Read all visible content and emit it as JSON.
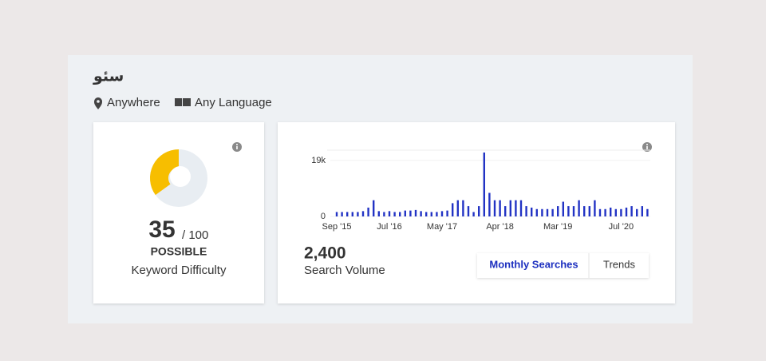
{
  "header": {
    "title": "سئو",
    "location": "Anywhere",
    "language": "Any Language"
  },
  "difficulty": {
    "score": 35,
    "max": {
      "value": 100,
      "label": "/ 100"
    },
    "rating": "POSSIBLE",
    "caption": "Keyword Difficulty",
    "color": "#f7be00",
    "track_color": "#e8edf2"
  },
  "chart_data": {
    "type": "bar",
    "categories": [
      "Sep '15",
      null,
      null,
      null,
      null,
      null,
      null,
      null,
      null,
      null,
      "Jul '16",
      null,
      null,
      null,
      null,
      null,
      null,
      null,
      null,
      null,
      "May '17",
      null,
      null,
      null,
      null,
      null,
      null,
      null,
      null,
      null,
      null,
      "Apr '18",
      null,
      null,
      null,
      null,
      null,
      null,
      null,
      null,
      null,
      null,
      "Mar '19",
      null,
      null,
      null,
      null,
      null,
      null,
      null,
      null,
      null,
      null,
      null,
      "Jul '20",
      null,
      null,
      null,
      null,
      null
    ],
    "values": [
      1500,
      1500,
      1500,
      1500,
      1500,
      1800,
      3000,
      5500,
      1800,
      1500,
      1800,
      1500,
      1500,
      2000,
      2000,
      2200,
      1800,
      1500,
      1500,
      1500,
      1800,
      2000,
      4500,
      5500,
      5500,
      3500,
      1500,
      3500,
      21700,
      8000,
      5500,
      5500,
      3500,
      5500,
      5500,
      5500,
      3500,
      3000,
      2500,
      2500,
      2500,
      2500,
      3500,
      5000,
      3500,
      3500,
      5500,
      3500,
      3500,
      5500,
      2500,
      2500,
      3000,
      2500,
      2500,
      3000,
      3500,
      2500,
      3500,
      2500
    ],
    "color": "#2233c4",
    "ylim": [
      0,
      22500
    ],
    "yticks": [
      0,
      {
        "value": 19000,
        "label": "19k"
      }
    ],
    "grid": true
  },
  "volume": {
    "value": "2,400",
    "caption": "Search Volume"
  },
  "tabs": [
    "Monthly Searches",
    "Trends"
  ]
}
